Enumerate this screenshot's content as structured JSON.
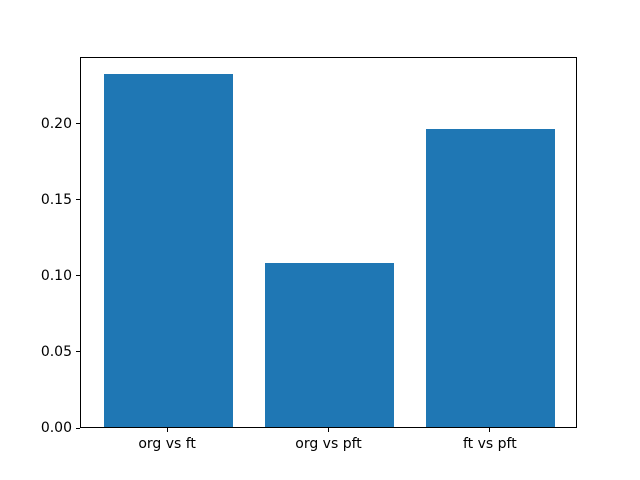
{
  "chart_data": {
    "type": "bar",
    "categories": [
      "org vs ft",
      "org vs pft",
      "ft vs pft"
    ],
    "values": [
      0.232,
      0.108,
      0.196
    ],
    "title": "",
    "xlabel": "",
    "ylabel": "",
    "ylim": [
      0,
      0.244
    ],
    "xlim": [
      -0.54,
      2.54
    ],
    "bar_width": 0.8,
    "yticks": [
      0.0,
      0.05,
      0.1,
      0.15,
      0.2
    ],
    "ytick_labels": [
      "0.00",
      "0.05",
      "0.10",
      "0.15",
      "0.20"
    ],
    "bar_color": "#1f77b4",
    "background_color": "#ffffff",
    "spine_color": "#000000",
    "grid": false,
    "legend_position": "none"
  }
}
